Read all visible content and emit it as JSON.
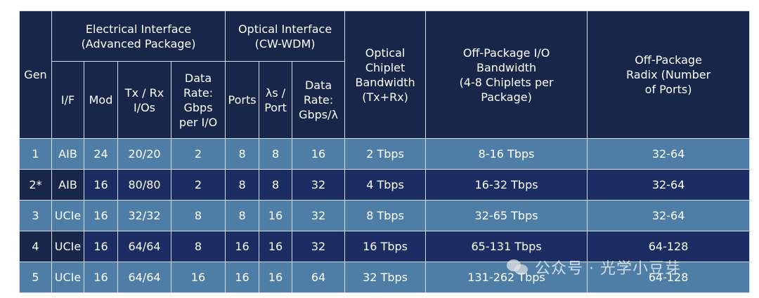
{
  "header": {
    "gen": "Gen",
    "electrical_group": "Electrical Interface\n(Advanced Package)",
    "optical_group": "Optical Interface\n(CW-WDM)",
    "optical_chiplet_bandwidth": "Optical\nChiplet\nBandwidth\n(Tx+Rx)",
    "off_package_io_bandwidth": "Off-Package I/O\nBandwidth\n(4-8 Chiplets per\nPackage)",
    "off_package_radix": "Off-Package\nRadix (Number\nof Ports)",
    "if": "I/F",
    "mod": "Mod",
    "tx_rx_ios": "Tx / Rx\nI/Os",
    "data_rate_gbps_per_io": "Data\nRate:\nGbps\nper I/O",
    "ports": "Ports",
    "lambdas_per_port": "λs /\nPort",
    "data_rate_gbps_per_lambda": "Data\nRate:\nGbps/λ"
  },
  "rows": [
    {
      "gen": "1",
      "if": "AIB",
      "mod": "24",
      "txrx": "20/20",
      "rate_io": "2",
      "ports": "8",
      "lambdas": "8",
      "rate_lambda": "16",
      "chiplet_bw": "2 Tbps",
      "io_bw": "8-16 Tbps",
      "radix": "32-64",
      "shade": "light"
    },
    {
      "gen": "2*",
      "if": "AIB",
      "mod": "16",
      "txrx": "80/80",
      "rate_io": "2",
      "ports": "8",
      "lambdas": "8",
      "rate_lambda": "32",
      "chiplet_bw": "4 Tbps",
      "io_bw": "16-32 Tbps",
      "radix": "32-64",
      "shade": "dark"
    },
    {
      "gen": "3",
      "if": "UCIe",
      "mod": "16",
      "txrx": "32/32",
      "rate_io": "8",
      "ports": "8",
      "lambdas": "16",
      "rate_lambda": "32",
      "chiplet_bw": "8 Tbps",
      "io_bw": "32-65 Tbps",
      "radix": "32-64",
      "shade": "light"
    },
    {
      "gen": "4",
      "if": "UCIe",
      "mod": "16",
      "txrx": "64/64",
      "rate_io": "8",
      "ports": "16",
      "lambdas": "16",
      "rate_lambda": "32",
      "chiplet_bw": "16 Tbps",
      "io_bw": "65-131 Tbps",
      "radix": "64-128",
      "shade": "dark"
    },
    {
      "gen": "5",
      "if": "UCIe",
      "mod": "16",
      "txrx": "64/64",
      "rate_io": "16",
      "ports": "16",
      "lambdas": "16",
      "rate_lambda": "64",
      "chiplet_bw": "32 Tbps",
      "io_bw": "131-262 Tbps",
      "radix": "64-128",
      "shade": "light"
    }
  ],
  "watermark": {
    "text": "公众号 · 光学小豆芽",
    "icon": "wechat-icon"
  },
  "colors": {
    "header_bg": "#18264a",
    "row_light": "#4e7ea6",
    "row_dark": "#1c2d63",
    "grid_line": "#d7dde6",
    "text": "#ffffff"
  }
}
